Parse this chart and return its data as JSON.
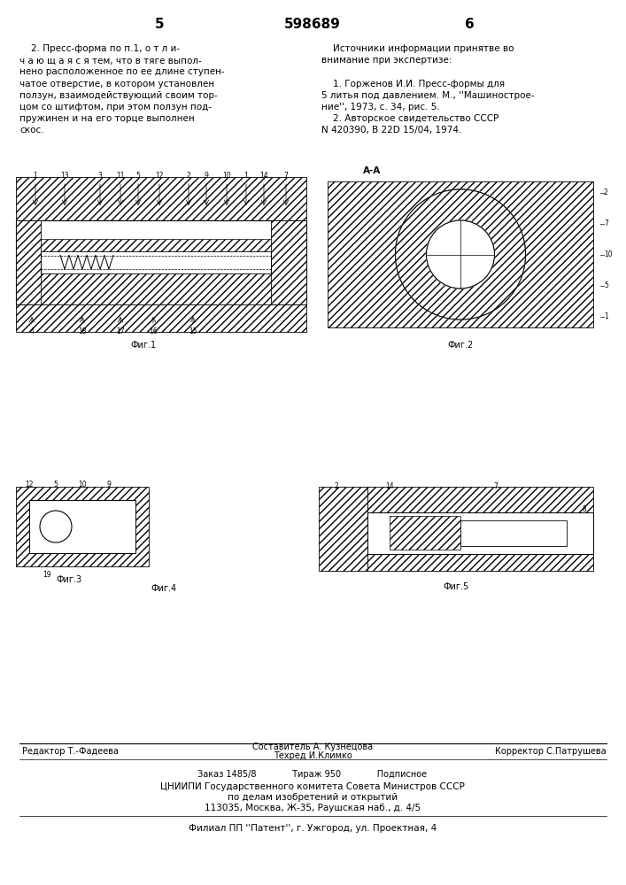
{
  "bg_color": "#f5f5f0",
  "page_color": "#ffffff",
  "title_page_num_left": "5",
  "title_patent_num": "598689",
  "title_page_num_right": "6",
  "left_text": "    2. Пресс-форма по п.1, о т л и-\nч а ю щ а я с я тем, что в тяге выпол-\nнено расположенное по ее длине ступен-\nчатое отверстие, в котором установлен\nползун, взаимодействующий своим тор-\nцом со штифтом, при этом ползун под-\nпружинен и на его торце выполнен\nскос.",
  "right_text": "    Источники информации принятве во\nвнимание при экспертизе:\n\n    1. Горженов И.И. Пресс-формы для\n5 литья под давлением. М., ''Машинострое-\nние'', 1973, с. 34, рис. 5.\n    2. Авторское свидетельство СССР\nN 420390, В 22D 15/04, 1974.",
  "fig1_label": "Фиг.1",
  "fig2_label": "Фиг.2",
  "fig3_label": "Фиг.3",
  "fig4_label": "Фиг.4",
  "fig5_label": "Фиг.5",
  "aa_label": "А-А",
  "footer_line1_left": "Редактор Т.-Фадеева",
  "footer_line1_center": "Составитель А. Кузнецова\nТехред И.Климко",
  "footer_line1_right": "Корректор С.Патрушева",
  "footer_line2": "Заказ 1485/8             Тираж 950             Подписное",
  "footer_line3": "ЦНИИПИ Государственного комитета Совета Министров СССР",
  "footer_line4": "по делам изобретений и открытий",
  "footer_line5": "113035, Москва, Ж-35, Раушская наб., д. 4/5",
  "footer_line6": "Филиал ПП ''Патент'', г. Ужгород, ул. Проектная, 4"
}
